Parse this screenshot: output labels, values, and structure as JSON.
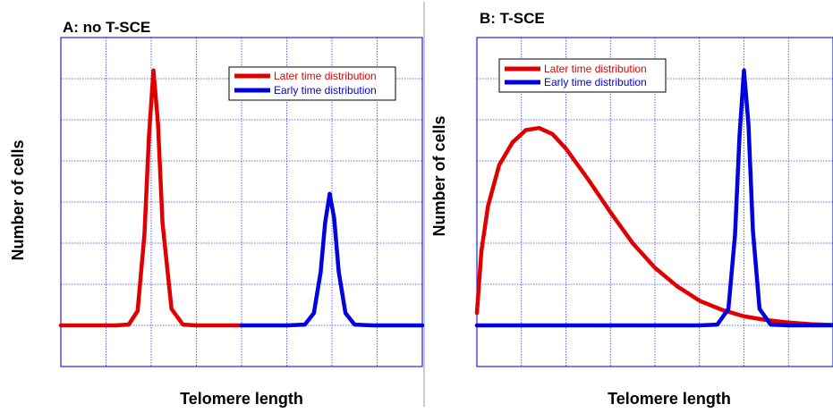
{
  "chart_data": [
    {
      "type": "line",
      "title": "A: no T-SCE",
      "xlabel": "Telomere length",
      "ylabel": "Number of cells",
      "xlim": [
        0,
        8
      ],
      "ylim": [
        -1,
        7
      ],
      "grid": true,
      "legend_position": "top-right",
      "series": [
        {
          "name": "Later time distribution",
          "color": "#e00000",
          "x": [
            0,
            0.6,
            1.2,
            1.5,
            1.7,
            1.85,
            1.95,
            2.05,
            2.15,
            2.25,
            2.45,
            2.7,
            3.0,
            3.5,
            4.0
          ],
          "y": [
            0,
            0,
            0,
            0.02,
            0.35,
            2.2,
            4.6,
            6.2,
            4.9,
            2.5,
            0.4,
            0.02,
            0,
            0,
            0
          ]
        },
        {
          "name": "Early time distribution",
          "color": "#0000e0",
          "x": [
            4.0,
            4.5,
            5.0,
            5.4,
            5.6,
            5.75,
            5.85,
            5.95,
            6.05,
            6.15,
            6.3,
            6.5,
            6.9,
            7.4,
            8.0
          ],
          "y": [
            0,
            0,
            0,
            0.02,
            0.3,
            1.3,
            2.5,
            3.2,
            2.6,
            1.3,
            0.3,
            0.02,
            0,
            0,
            0
          ]
        }
      ]
    },
    {
      "type": "line",
      "title": "B: T-SCE",
      "xlabel": "Telomere length",
      "ylabel": "Number of cells",
      "xlim": [
        0,
        8
      ],
      "ylim": [
        -1,
        7
      ],
      "grid": true,
      "legend_position": "top-left",
      "series": [
        {
          "name": "Later time distribution",
          "color": "#e00000",
          "x": [
            0,
            0.1,
            0.25,
            0.5,
            0.8,
            1.1,
            1.4,
            1.7,
            2.0,
            2.5,
            3.0,
            3.5,
            4.0,
            4.5,
            5.0,
            5.5,
            6.0,
            6.5,
            7.0,
            7.5,
            8.0
          ],
          "y": [
            0.3,
            1.8,
            2.9,
            3.9,
            4.45,
            4.75,
            4.8,
            4.65,
            4.3,
            3.55,
            2.75,
            2.0,
            1.4,
            0.95,
            0.6,
            0.38,
            0.22,
            0.13,
            0.07,
            0.03,
            0.01
          ]
        },
        {
          "name": "Early time distribution",
          "color": "#0000e0",
          "x": [
            0,
            1.0,
            2.0,
            3.0,
            4.0,
            5.0,
            5.4,
            5.65,
            5.8,
            5.9,
            6.0,
            6.1,
            6.2,
            6.35,
            6.6,
            7.0,
            8.0
          ],
          "y": [
            0,
            0,
            0,
            0,
            0,
            0,
            0.02,
            0.4,
            2.2,
            4.6,
            6.2,
            4.9,
            2.3,
            0.4,
            0.02,
            0,
            0
          ]
        }
      ]
    }
  ]
}
